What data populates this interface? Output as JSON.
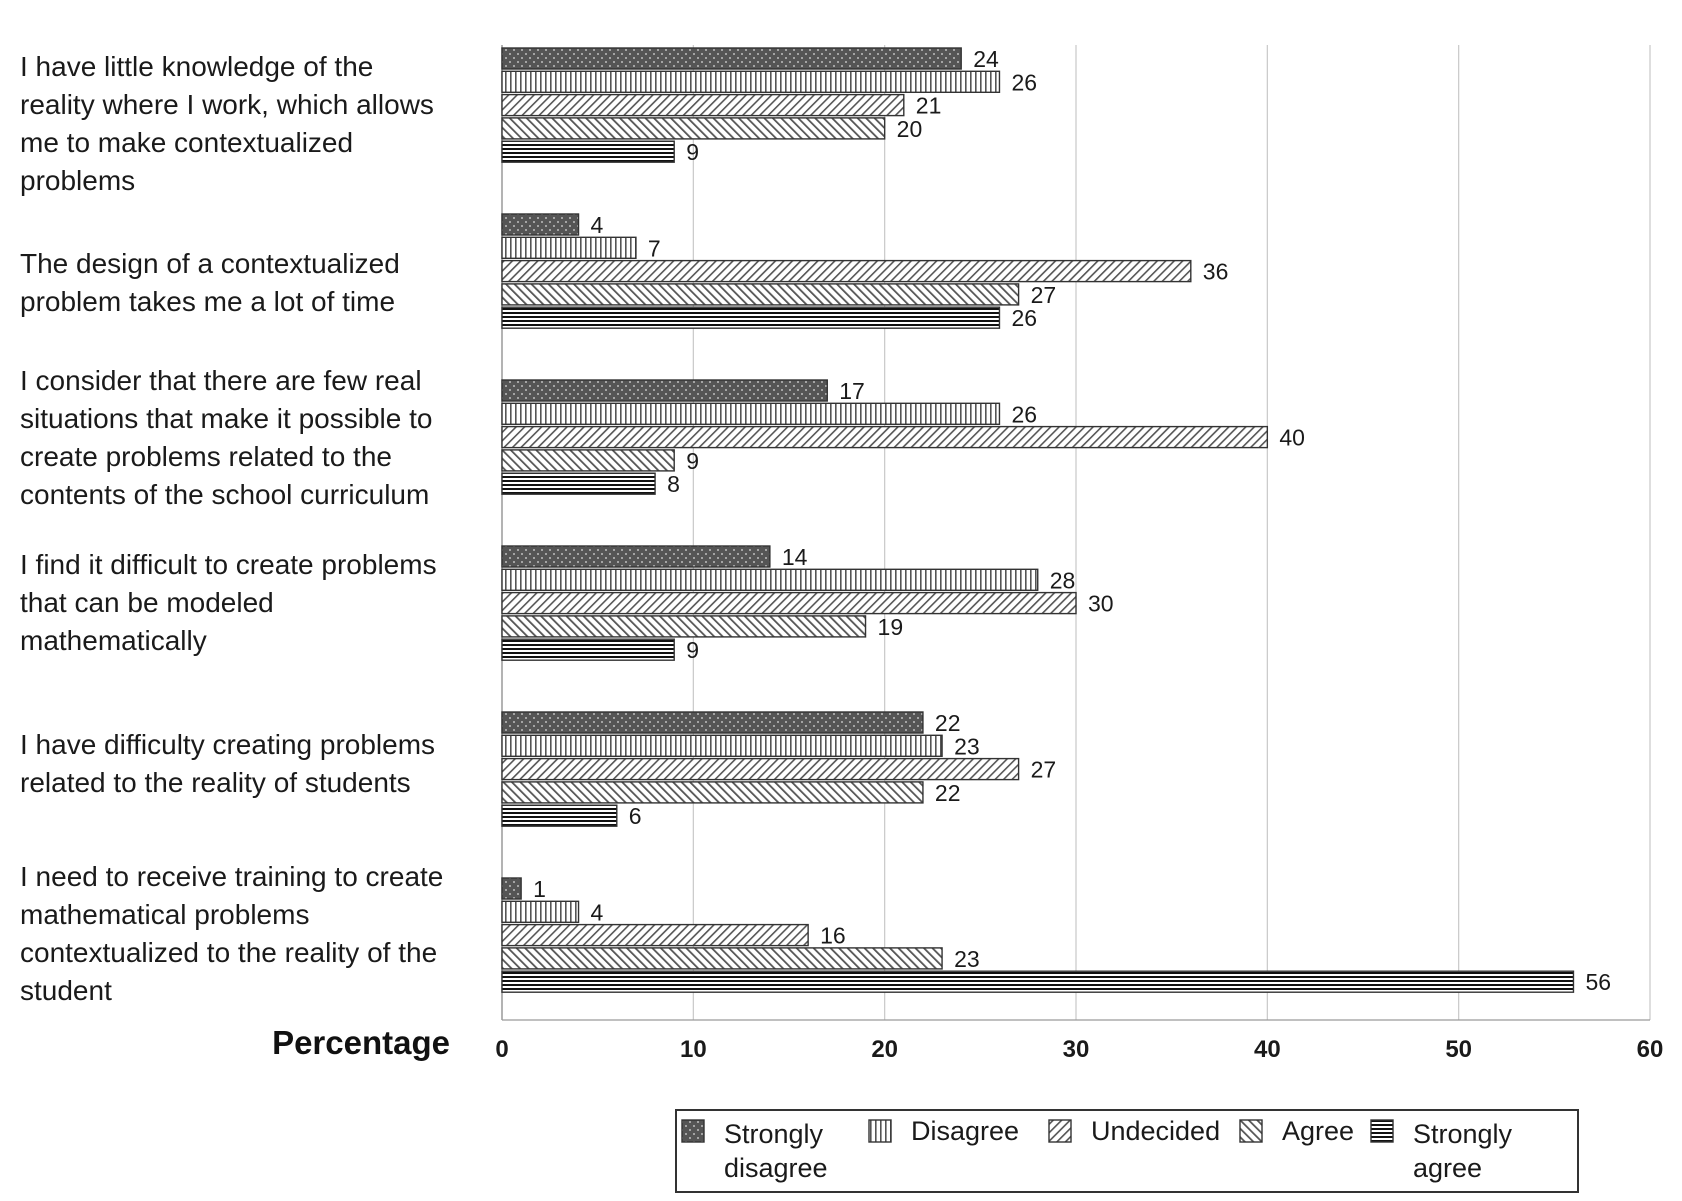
{
  "chart_data": {
    "type": "bar",
    "orientation": "horizontal",
    "xlabel": "Percentage",
    "xlim": [
      0,
      60
    ],
    "xticks": [
      0,
      10,
      20,
      30,
      40,
      50,
      60
    ],
    "grid": true,
    "legend_position": "bottom",
    "categories": [
      [
        "I have little knowledge of the",
        "reality where I work, which allows",
        "me to make contextualized",
        "problems"
      ],
      [
        "The design of a contextualized",
        "problem takes me a lot of time"
      ],
      [
        "I consider that there are few real",
        "situations that make it possible to",
        "create problems related to the",
        "contents of the school curriculum"
      ],
      [
        "I find it difficult to create problems",
        "that can be modeled",
        "mathematically"
      ],
      [
        "I have difficulty creating problems",
        "related to the reality of students"
      ],
      [
        "I need to receive training to create",
        "mathematical problems",
        "contextualized to the reality of the",
        "student"
      ]
    ],
    "series": [
      {
        "name": [
          "Strongly",
          "disagree"
        ],
        "pattern": "dots",
        "values": [
          24,
          4,
          17,
          14,
          22,
          1
        ]
      },
      {
        "name": [
          "Disagree"
        ],
        "pattern": "vlines",
        "values": [
          26,
          7,
          26,
          28,
          23,
          4
        ]
      },
      {
        "name": [
          "Undecided"
        ],
        "pattern": "diag",
        "values": [
          21,
          36,
          40,
          30,
          27,
          16
        ]
      },
      {
        "name": [
          "Agree"
        ],
        "pattern": "cross",
        "values": [
          20,
          27,
          9,
          19,
          22,
          23
        ]
      },
      {
        "name": [
          "Strongly",
          "agree"
        ],
        "pattern": "hlines",
        "values": [
          9,
          26,
          8,
          9,
          6,
          56
        ]
      }
    ]
  }
}
